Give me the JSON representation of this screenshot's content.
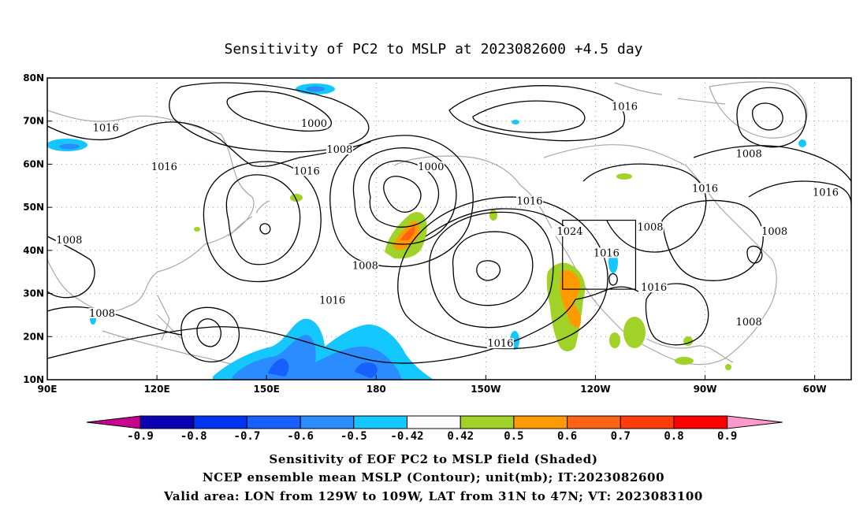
{
  "chart_data": {
    "type": "contour-map",
    "title": "Sensitivity of PC2 to MSLP at 2023082600 +4.5 day",
    "x_ticks": [
      "90E",
      "120E",
      "150E",
      "180",
      "150W",
      "120W",
      "90W",
      "60W"
    ],
    "y_ticks": [
      "10N",
      "20N",
      "30N",
      "40N",
      "50N",
      "60N",
      "70N",
      "80N"
    ],
    "lon_range": [
      90,
      310
    ],
    "lat_range": [
      10,
      80
    ],
    "grid": "dotted",
    "colorbar": {
      "levels": [
        "-0.9",
        "-0.8",
        "-0.7",
        "-0.6",
        "-0.5",
        "-0.42",
        "0.42",
        "0.5",
        "0.6",
        "0.7",
        "0.8",
        "0.9"
      ],
      "colors": [
        "#c8028c",
        "#0a00b4",
        "#0033f0",
        "#1560ff",
        "#2a8cff",
        "#14c8ff",
        "#ffffff",
        "#a0d228",
        "#ff9a00",
        "#ff6414",
        "#ff3c0a",
        "#ff0000",
        "#ff99cc"
      ]
    },
    "contour_labels": [
      {
        "text": "1016",
        "lon": 106,
        "lat": 68
      },
      {
        "text": "1000",
        "lon": 163,
        "lat": 69
      },
      {
        "text": "1016",
        "lon": 248,
        "lat": 73
      },
      {
        "text": "1008",
        "lon": 282,
        "lat": 62
      },
      {
        "text": "1016",
        "lon": 122,
        "lat": 59
      },
      {
        "text": "1016",
        "lon": 161,
        "lat": 58
      },
      {
        "text": "1008",
        "lon": 170,
        "lat": 63
      },
      {
        "text": "1000",
        "lon": 195,
        "lat": 59
      },
      {
        "text": "1016",
        "lon": 222,
        "lat": 51
      },
      {
        "text": "1016",
        "lon": 270,
        "lat": 54
      },
      {
        "text": "1016",
        "lon": 303,
        "lat": 53
      },
      {
        "text": "1008",
        "lon": 96,
        "lat": 42
      },
      {
        "text": "1024",
        "lon": 233,
        "lat": 44
      },
      {
        "text": "1008",
        "lon": 255,
        "lat": 45
      },
      {
        "text": "1008",
        "lon": 289,
        "lat": 44
      },
      {
        "text": "1016",
        "lon": 243,
        "lat": 39
      },
      {
        "text": "1008",
        "lon": 177,
        "lat": 36
      },
      {
        "text": "1016",
        "lon": 256,
        "lat": 31
      },
      {
        "text": "1016",
        "lon": 168,
        "lat": 28
      },
      {
        "text": "1008",
        "lon": 105,
        "lat": 25
      },
      {
        "text": "1008",
        "lon": 282,
        "lat": 23
      },
      {
        "text": "1016",
        "lon": 214,
        "lat": 18
      }
    ],
    "valid_box": {
      "lon": [
        231,
        251
      ],
      "lat": [
        31,
        47
      ]
    }
  },
  "caption": {
    "line1": "Sensitivity of EOF PC2 to MSLP field (Shaded)",
    "line2": "NCEP ensemble mean MSLP (Contour); unit(mb); IT:2023082600",
    "line3": "Valid area: LON from 129W to 109W, LAT from 31N to 47N; VT: 2023083100"
  }
}
